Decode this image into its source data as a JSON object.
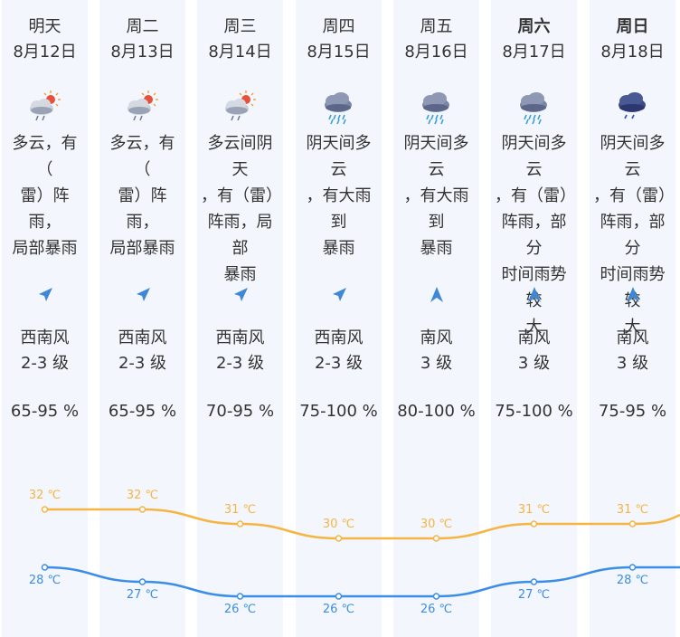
{
  "colors": {
    "column_bg": "#f3f6fc",
    "high_line": "#f5b542",
    "low_line": "#3b8ee6",
    "wind_arrow": "#3f88d6"
  },
  "days": [
    {
      "day": "明天",
      "date": "8月12日",
      "icon": "partly-cloudy-rain-icon",
      "desc": "多云，有（雷）阵雨，局部暴雨",
      "wind_dir": "西南风",
      "wind_level": "2-3 级",
      "humidity": "65-95 %",
      "high": "32 ℃",
      "low": "28 ℃",
      "bold": false
    },
    {
      "day": "周二",
      "date": "8月13日",
      "icon": "partly-cloudy-rain-icon",
      "desc": "多云，有（雷）阵雨，局部暴雨",
      "wind_dir": "西南风",
      "wind_level": "2-3 级",
      "humidity": "65-95 %",
      "high": "32 ℃",
      "low": "27 ℃",
      "bold": false
    },
    {
      "day": "周三",
      "date": "8月14日",
      "icon": "partly-cloudy-rain-icon",
      "desc": "多云间阴天，有（雷）阵雨，局部暴雨",
      "wind_dir": "西南风",
      "wind_level": "2-3 级",
      "humidity": "70-95 %",
      "high": "31 ℃",
      "low": "26 ℃",
      "bold": false
    },
    {
      "day": "周四",
      "date": "8月15日",
      "icon": "heavy-rain-icon",
      "desc": "阴天间多云，有大雨到暴雨",
      "wind_dir": "西南风",
      "wind_level": "2-3 级",
      "humidity": "75-100 %",
      "high": "30 ℃",
      "low": "26 ℃",
      "bold": false
    },
    {
      "day": "周五",
      "date": "8月16日",
      "icon": "heavy-rain-icon",
      "desc": "阴天间多云，有大雨到暴雨",
      "wind_dir": "南风",
      "wind_level": "3 级",
      "humidity": "80-100 %",
      "high": "30 ℃",
      "low": "26 ℃",
      "bold": false
    },
    {
      "day": "周六",
      "date": "8月17日",
      "icon": "heavy-rain-icon",
      "desc": "阴天间多云，有（雷）阵雨，部分时间雨势较大",
      "wind_dir": "南风",
      "wind_level": "3 级",
      "humidity": "75-100 %",
      "high": "31 ℃",
      "low": "27 ℃",
      "bold": true
    },
    {
      "day": "周日",
      "date": "8月18日",
      "icon": "dark-cloud-rain-icon",
      "desc": "阴天间多云，有（雷）阵雨，部分时间雨势较大",
      "wind_dir": "南风",
      "wind_level": "3 级",
      "humidity": "75-95 %",
      "high": "31 ℃",
      "low": "28 ℃",
      "bold": true
    }
  ],
  "chart_data": {
    "type": "line",
    "categories": [
      "8月12日",
      "8月13日",
      "8月14日",
      "8月15日",
      "8月16日",
      "8月17日",
      "8月18日"
    ],
    "series": [
      {
        "values": [
          32,
          32,
          31,
          30,
          30,
          31,
          31
        ]
      },
      {
        "values": [
          28,
          27,
          26,
          26,
          26,
          27,
          28
        ]
      }
    ]
  }
}
